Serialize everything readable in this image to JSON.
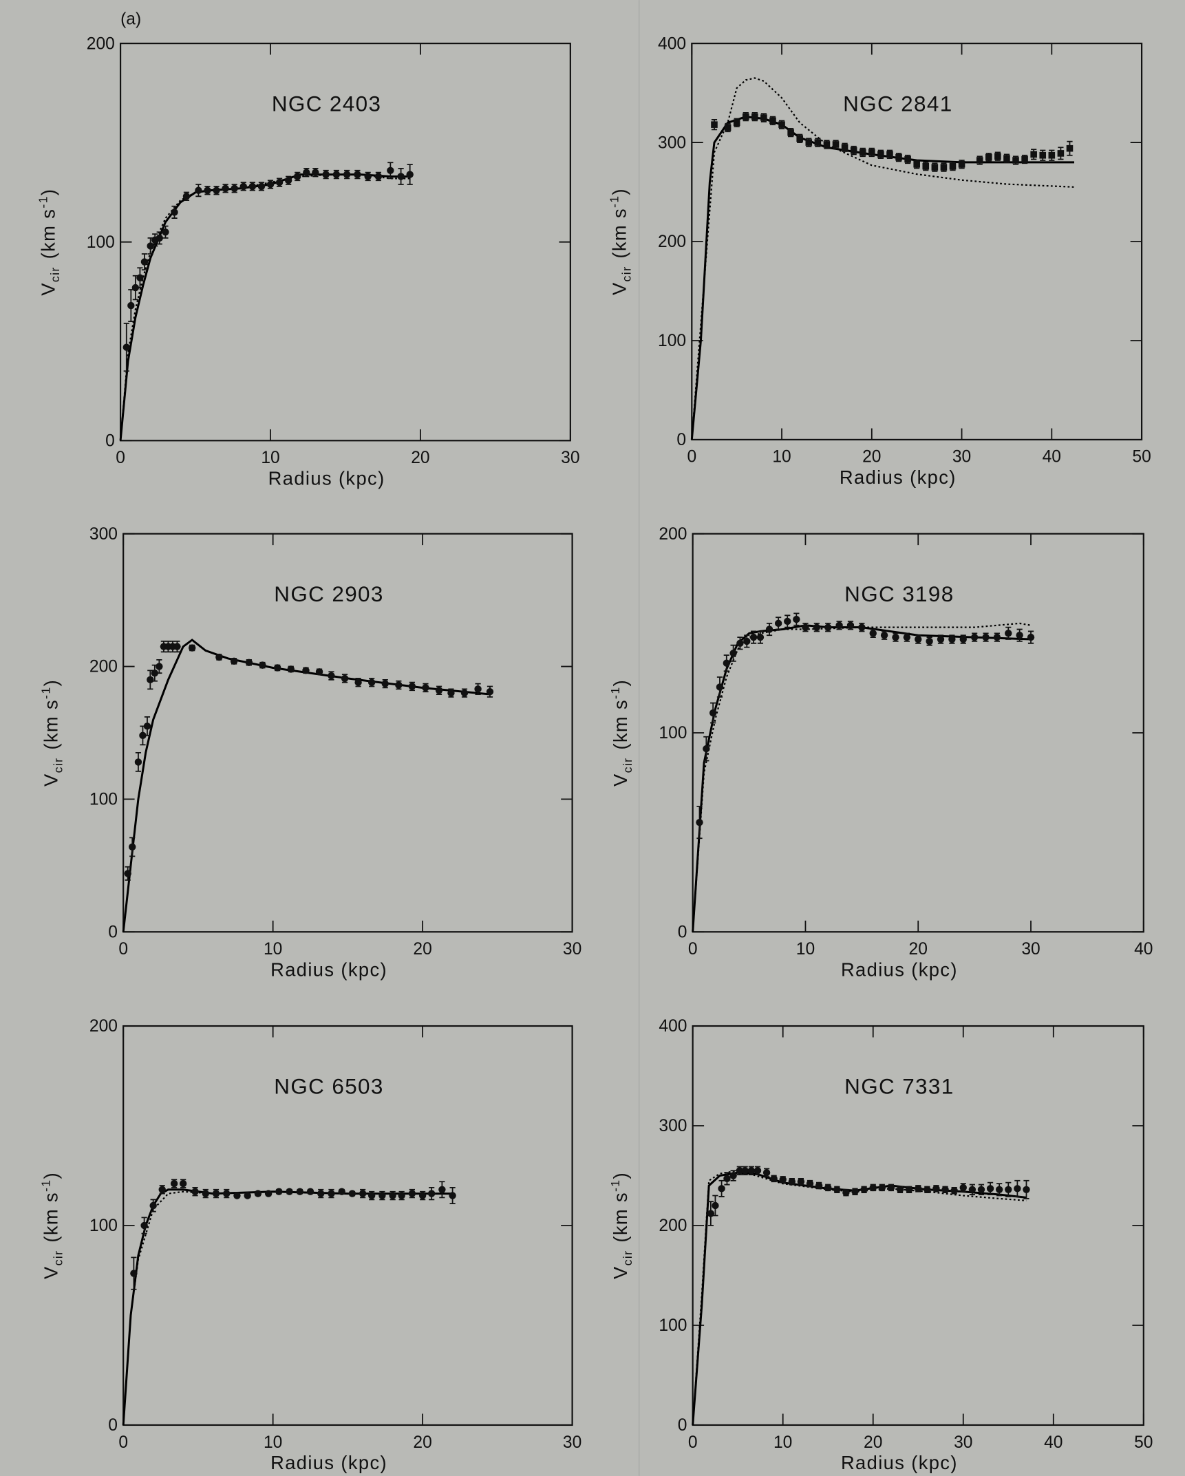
{
  "panel_label": "(a)",
  "chart_data": [
    {
      "type": "line",
      "title": "NGC 2403",
      "xlabel": "Radius (kpc)",
      "ylabel": {
        "symbol": "V",
        "subscript": "cir",
        "unit": "(km s",
        "exponent": "-1",
        "close": ")"
      },
      "xlim": [
        0,
        30
      ],
      "ylim": [
        0,
        200
      ],
      "xticks": [
        0,
        10,
        20,
        30
      ],
      "yticks": [
        0,
        100,
        200
      ],
      "points": {
        "marker": "circle",
        "color": "#111",
        "x": [
          0.4,
          0.7,
          1.0,
          1.3,
          1.6,
          2.0,
          2.3,
          2.6,
          3.0,
          3.6,
          4.4,
          5.2,
          5.8,
          6.4,
          7.0,
          7.6,
          8.2,
          8.8,
          9.4,
          10.0,
          10.6,
          11.2,
          11.8,
          12.4,
          13.0,
          13.7,
          14.4,
          15.1,
          15.8,
          16.5,
          17.2,
          18.0,
          18.7,
          19.3
        ],
        "values": [
          47,
          68,
          77,
          82,
          90,
          98,
          101,
          102,
          105,
          115,
          123,
          126,
          126,
          126,
          127,
          127,
          128,
          128,
          128,
          129,
          130,
          131,
          133,
          135,
          135,
          134,
          134,
          134,
          134,
          133,
          133,
          136,
          133,
          134
        ],
        "errors": [
          12,
          8,
          6,
          5,
          4,
          4,
          3,
          3,
          3,
          3,
          2,
          3,
          2,
          2,
          2,
          2,
          2,
          2,
          2,
          2,
          2,
          2,
          2,
          2,
          2,
          2,
          2,
          2,
          2,
          2,
          2,
          4,
          4,
          5
        ]
      },
      "series": [
        {
          "style": "solid",
          "color": "#000",
          "x": [
            0,
            0.5,
            1,
            1.5,
            2,
            3,
            4,
            5,
            6,
            8,
            10,
            12,
            14,
            16,
            18,
            19.3
          ],
          "values": [
            0,
            40,
            62,
            78,
            92,
            110,
            120,
            125,
            126,
            127,
            129,
            134,
            134,
            134,
            133,
            133
          ]
        },
        {
          "style": "dotted",
          "color": "#000",
          "x": [
            0,
            0.5,
            1,
            1.5,
            2,
            3,
            4,
            5,
            6,
            8,
            10,
            12,
            14,
            16,
            18,
            19.3
          ],
          "values": [
            0,
            44,
            66,
            82,
            95,
            112,
            121,
            125,
            126,
            127,
            130,
            133,
            134,
            134,
            132,
            132
          ]
        }
      ]
    },
    {
      "type": "line",
      "title": "NGC 2841",
      "xlabel": "Radius (kpc)",
      "ylabel": {
        "symbol": "V",
        "subscript": "cir",
        "unit": "(km s",
        "exponent": "-1",
        "close": ")"
      },
      "xlim": [
        0,
        50
      ],
      "ylim": [
        0,
        400
      ],
      "xticks": [
        0,
        10,
        20,
        30,
        40,
        50
      ],
      "yticks": [
        0,
        100,
        200,
        300,
        400
      ],
      "points": {
        "marker": "square",
        "color": "#111",
        "x": [
          2.5,
          4,
          5,
          6,
          7,
          8,
          9,
          10,
          11,
          12,
          13,
          14,
          15,
          16,
          17,
          18,
          19,
          20,
          21,
          22,
          23,
          24,
          25,
          26,
          27,
          28,
          29,
          30,
          32,
          33,
          34,
          35,
          36,
          37,
          38,
          39,
          40,
          41,
          42
        ],
        "values": [
          318,
          315,
          320,
          326,
          326,
          325,
          322,
          318,
          310,
          304,
          300,
          300,
          298,
          298,
          295,
          292,
          290,
          290,
          288,
          288,
          285,
          283,
          278,
          276,
          275,
          275,
          276,
          278,
          282,
          285,
          286,
          284,
          282,
          283,
          288,
          287,
          287,
          289,
          294
        ],
        "errors": [
          5,
          4,
          4,
          4,
          4,
          4,
          4,
          4,
          4,
          4,
          4,
          4,
          4,
          4,
          4,
          4,
          4,
          4,
          4,
          4,
          4,
          4,
          4,
          4,
          4,
          4,
          4,
          4,
          4,
          4,
          4,
          4,
          4,
          4,
          5,
          5,
          5,
          6,
          7
        ]
      },
      "series": [
        {
          "style": "solid",
          "color": "#000",
          "x": [
            0,
            1,
            2,
            2.5,
            4,
            6,
            8,
            10,
            12,
            15,
            20,
            25,
            30,
            35,
            42.5
          ],
          "values": [
            0,
            100,
            260,
            300,
            320,
            326,
            324,
            318,
            305,
            295,
            288,
            282,
            280,
            280,
            280
          ]
        },
        {
          "style": "dotted",
          "color": "#000",
          "x": [
            0,
            2.5,
            4,
            5,
            6,
            7,
            8,
            10,
            12,
            15,
            20,
            25,
            30,
            35,
            42.5
          ],
          "values": [
            0,
            290,
            320,
            355,
            363,
            365,
            362,
            345,
            320,
            298,
            277,
            268,
            262,
            258,
            255
          ]
        }
      ]
    },
    {
      "type": "line",
      "title": "NGC 2903",
      "xlabel": "Radius (kpc)",
      "ylabel": {
        "symbol": "V",
        "subscript": "cir",
        "unit": "(km s",
        "exponent": "-1",
        "close": ")"
      },
      "xlim": [
        0,
        30
      ],
      "ylim": [
        0,
        300
      ],
      "xticks": [
        0,
        10,
        20,
        30
      ],
      "yticks": [
        0,
        100,
        200,
        300
      ],
      "points": {
        "marker": "circle",
        "color": "#111",
        "x": [
          0.3,
          0.6,
          1.0,
          1.3,
          1.6,
          1.8,
          2.1,
          2.4,
          2.7,
          3.0,
          3.3,
          3.6,
          4.6,
          6.4,
          7.4,
          8.4,
          9.3,
          10.3,
          11.2,
          12.2,
          13.1,
          13.9,
          14.8,
          15.7,
          16.6,
          17.5,
          18.4,
          19.3,
          20.2,
          21.1,
          21.9,
          22.8,
          23.7,
          24.5
        ],
        "values": [
          44,
          64,
          128,
          148,
          155,
          190,
          195,
          200,
          215,
          215,
          215,
          215,
          214,
          207,
          204,
          203,
          201,
          199,
          198,
          197,
          196,
          193,
          191,
          188,
          188,
          187,
          186,
          185,
          184,
          182,
          180,
          180,
          183,
          181
        ],
        "errors": [
          5,
          7,
          7,
          7,
          7,
          7,
          6,
          5,
          4,
          4,
          4,
          4,
          2,
          2,
          2,
          2,
          2,
          2,
          2,
          2,
          2,
          3,
          3,
          3,
          3,
          3,
          3,
          3,
          3,
          3,
          3,
          3,
          4,
          4
        ]
      },
      "series": [
        {
          "style": "solid",
          "color": "#000",
          "x": [
            0,
            0.5,
            1,
            1.5,
            2,
            3,
            4,
            4.6,
            5.5,
            7,
            10,
            15,
            20,
            24.5
          ],
          "values": [
            0,
            50,
            100,
            135,
            160,
            190,
            215,
            220,
            212,
            206,
            199,
            191,
            184,
            179
          ]
        }
      ]
    },
    {
      "type": "line",
      "title": "NGC 3198",
      "xlabel": "Radius (kpc)",
      "ylabel": {
        "symbol": "V",
        "subscript": "cir",
        "unit": "(km s",
        "exponent": "-1",
        "close": ")"
      },
      "xlim": [
        0,
        40
      ],
      "ylim": [
        0,
        200
      ],
      "xticks": [
        0,
        10,
        20,
        30,
        40
      ],
      "yticks": [
        0,
        100,
        200
      ],
      "points": {
        "marker": "circle",
        "color": "#111",
        "x": [
          0.6,
          1.2,
          1.8,
          2.4,
          3.0,
          3.6,
          4.2,
          4.8,
          5.4,
          6.0,
          6.8,
          7.6,
          8.4,
          9.2,
          10,
          11,
          12,
          13,
          14,
          15,
          16,
          17,
          18,
          19,
          20,
          21,
          22,
          23,
          24,
          25,
          26,
          27,
          28,
          29,
          30
        ],
        "values": [
          55,
          92,
          110,
          123,
          135,
          140,
          145,
          146,
          148,
          148,
          152,
          155,
          156,
          157,
          153,
          153,
          153,
          154,
          154,
          153,
          150,
          149,
          148,
          148,
          147,
          146,
          147,
          147,
          147,
          148,
          148,
          148,
          150,
          149,
          148
        ],
        "errors": [
          8,
          6,
          5,
          5,
          4,
          4,
          3,
          3,
          3,
          3,
          3,
          3,
          3,
          3,
          2,
          2,
          2,
          2,
          2,
          2,
          2,
          2,
          2,
          2,
          2,
          2,
          2,
          2,
          2,
          2,
          2,
          2,
          3,
          3,
          3
        ]
      },
      "series": [
        {
          "style": "solid",
          "color": "#000",
          "x": [
            0,
            1,
            2,
            3,
            4,
            5,
            6,
            8,
            10,
            12,
            15,
            20,
            25,
            30
          ],
          "values": [
            0,
            85,
            112,
            132,
            145,
            150,
            151,
            152,
            154,
            153,
            153,
            149,
            148,
            147
          ]
        },
        {
          "style": "dotted",
          "color": "#000",
          "x": [
            0,
            1,
            2,
            3,
            4,
            5,
            6,
            8,
            10,
            15,
            20,
            25,
            29,
            30
          ],
          "values": [
            0,
            80,
            107,
            128,
            142,
            148,
            150,
            152,
            152,
            153,
            153,
            153,
            155,
            154
          ]
        }
      ]
    },
    {
      "type": "line",
      "title": "NGC 6503",
      "xlabel": "Radius (kpc)",
      "ylabel": {
        "symbol": "V",
        "subscript": "cir",
        "unit": "(km s",
        "exponent": "-1",
        "close": ")"
      },
      "xlim": [
        0,
        30
      ],
      "ylim": [
        0,
        200
      ],
      "xticks": [
        0,
        10,
        20,
        30
      ],
      "yticks": [
        0,
        100,
        200
      ],
      "points": {
        "marker": "circle",
        "color": "#111",
        "x": [
          0.7,
          1.4,
          2.0,
          2.6,
          3.4,
          4.0,
          4.8,
          5.5,
          6.2,
          6.9,
          7.6,
          8.3,
          9.0,
          9.7,
          10.4,
          11.1,
          11.8,
          12.5,
          13.2,
          13.9,
          14.6,
          15.3,
          16.0,
          16.6,
          17.3,
          18.0,
          18.6,
          19.3,
          20.0,
          20.6,
          21.3,
          22.0
        ],
        "values": [
          76,
          100,
          110,
          118,
          121,
          121,
          117,
          116,
          116,
          116,
          115,
          115,
          116,
          116,
          117,
          117,
          117,
          117,
          116,
          116,
          117,
          116,
          116,
          115,
          115,
          115,
          115,
          116,
          115,
          116,
          118,
          115
        ],
        "errors": [
          8,
          4,
          3,
          2,
          2,
          2,
          2,
          2,
          2,
          2,
          1,
          1,
          1,
          1,
          1,
          1,
          1,
          1,
          2,
          2,
          1,
          1,
          2,
          2,
          2,
          2,
          2,
          2,
          2,
          3,
          4,
          4
        ]
      },
      "series": [
        {
          "style": "solid",
          "color": "#000",
          "x": [
            0,
            0.5,
            1,
            1.5,
            2,
            2.5,
            3,
            4,
            6,
            10,
            15,
            20,
            22
          ],
          "values": [
            0,
            55,
            85,
            100,
            110,
            116,
            118,
            118,
            116,
            117,
            116,
            116,
            116
          ]
        },
        {
          "style": "dotted",
          "color": "#000",
          "x": [
            0,
            0.5,
            1,
            2,
            3,
            4,
            6,
            10,
            15,
            20,
            22
          ],
          "values": [
            0,
            55,
            83,
            108,
            116,
            117,
            116,
            117,
            116,
            116,
            116
          ]
        }
      ]
    },
    {
      "type": "line",
      "title": "NGC 7331",
      "xlabel": "Radius (kpc)",
      "ylabel": {
        "symbol": "V",
        "subscript": "cir",
        "unit": "(km s",
        "exponent": "-1",
        "close": ")"
      },
      "xlim": [
        0,
        50
      ],
      "ylim": [
        0,
        400
      ],
      "xticks": [
        0,
        10,
        20,
        30,
        40,
        50
      ],
      "yticks": [
        0,
        100,
        200,
        300,
        400
      ],
      "points": {
        "marker": "circle",
        "color": "#111",
        "x": [
          2.0,
          2.5,
          3.2,
          3.8,
          4.5,
          5.2,
          5.8,
          6.5,
          7.2,
          8.2,
          9,
          10,
          11,
          12,
          13,
          14,
          15,
          16,
          17,
          18,
          19,
          20,
          21,
          22,
          23,
          24,
          25,
          26,
          27,
          28,
          29,
          30,
          31,
          32,
          33,
          34,
          35,
          36,
          37
        ],
        "values": [
          212,
          220,
          237,
          247,
          250,
          255,
          255,
          255,
          255,
          253,
          247,
          246,
          244,
          244,
          242,
          240,
          238,
          236,
          233,
          234,
          236,
          238,
          238,
          238,
          236,
          236,
          237,
          236,
          237,
          236,
          235,
          238,
          236,
          236,
          237,
          236,
          236,
          237,
          236
        ],
        "errors": [
          12,
          10,
          8,
          6,
          5,
          4,
          4,
          4,
          4,
          4,
          3,
          3,
          3,
          3,
          3,
          3,
          3,
          3,
          3,
          3,
          3,
          3,
          3,
          3,
          3,
          3,
          3,
          3,
          3,
          3,
          3,
          4,
          5,
          5,
          6,
          6,
          7,
          8,
          9
        ]
      },
      "series": [
        {
          "style": "solid",
          "color": "#000",
          "x": [
            0,
            1,
            1.8,
            3,
            5,
            7,
            10,
            15,
            18,
            22,
            26,
            30,
            34,
            37
          ],
          "values": [
            0,
            120,
            240,
            250,
            253,
            252,
            243,
            237,
            235,
            240,
            236,
            234,
            231,
            228
          ]
        },
        {
          "style": "dotted",
          "color": "#000",
          "x": [
            0,
            1,
            1.8,
            3,
            5,
            7,
            10,
            15,
            18,
            22,
            26,
            30,
            34,
            37
          ],
          "values": [
            0,
            130,
            245,
            252,
            255,
            250,
            242,
            236,
            234,
            237,
            234,
            230,
            227,
            225
          ]
        }
      ]
    }
  ]
}
